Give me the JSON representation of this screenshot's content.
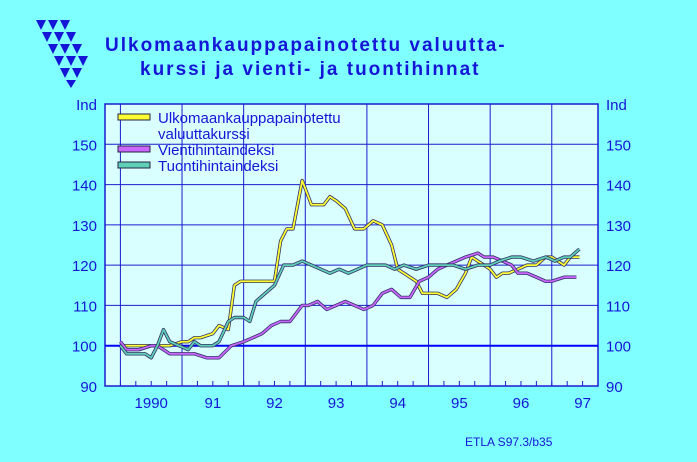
{
  "title_lines": [
    "Ulkomaankauppapainotettu  valuutta-",
    "kurssi  ja  vienti-  ja  tuontihinnat"
  ],
  "source": "ETLA S97.3/b35",
  "colors": {
    "background": "#7fffff",
    "plot": "#d9ffff",
    "text": "#1515d8",
    "grid": "#1b1bd0",
    "baseline": "#0000ff",
    "currency": "#ffff33",
    "export": "#cc66ff",
    "import": "#5fd0b8"
  },
  "logo": {
    "name": "etla-triangles-logo"
  },
  "chart_data": {
    "type": "line",
    "xlim": [
      1989.75,
      1997.75
    ],
    "ylim": [
      90,
      160
    ],
    "grid": true,
    "legend_position": "top-left",
    "y_axis_left_label": "Ind",
    "y_axis_right_label": "Ind",
    "y_ticks": [
      90,
      100,
      110,
      120,
      130,
      140,
      150
    ],
    "x_ticks": [
      {
        "label": "1990",
        "x": 1990.5
      },
      {
        "label": "91",
        "x": 1991.5
      },
      {
        "label": "92",
        "x": 1992.5
      },
      {
        "label": "93",
        "x": 1993.5
      },
      {
        "label": "94",
        "x": 1994.5
      },
      {
        "label": "95",
        "x": 1995.5
      },
      {
        "label": "96",
        "x": 1996.5
      },
      {
        "label": "97",
        "x": 1997.5
      }
    ],
    "reference_line": 100,
    "series": [
      {
        "name": "Ulkomaankauppapainotettu\nvaluuttakurssi",
        "color_key": "currency",
        "x": [
          1990.0,
          1990.1,
          1990.3,
          1990.5,
          1990.6,
          1990.8,
          1991.0,
          1991.1,
          1991.2,
          1991.3,
          1991.5,
          1991.6,
          1991.75,
          1991.85,
          1991.95,
          1992.1,
          1992.3,
          1992.5,
          1992.6,
          1992.7,
          1992.8,
          1992.95,
          1993.1,
          1993.2,
          1993.3,
          1993.4,
          1993.5,
          1993.65,
          1993.8,
          1993.95,
          1994.1,
          1994.25,
          1994.4,
          1994.5,
          1994.6,
          1994.7,
          1994.8,
          1994.9,
          1995.0,
          1995.15,
          1995.3,
          1995.45,
          1995.6,
          1995.7,
          1995.8,
          1995.9,
          1996.0,
          1996.1,
          1996.2,
          1996.3,
          1996.45,
          1996.6,
          1996.75,
          1996.9,
          1997.0,
          1997.2,
          1997.3,
          1997.45
        ],
        "values": [
          100,
          100,
          100,
          100,
          100,
          100,
          101,
          101,
          102,
          102,
          103,
          105,
          104,
          115,
          116,
          116,
          116,
          116,
          126,
          129,
          129,
          141,
          135,
          135,
          135,
          137,
          136,
          134,
          129,
          129,
          131,
          130,
          125,
          119,
          118,
          117,
          116,
          113,
          113,
          113,
          112,
          114,
          118,
          122,
          121,
          120,
          119,
          117,
          118,
          118,
          119,
          120,
          120,
          122,
          122,
          120,
          122,
          122
        ]
      },
      {
        "name": "Vientihintaindeksi",
        "color_key": "export",
        "x": [
          1990.0,
          1990.1,
          1990.3,
          1990.5,
          1990.6,
          1990.8,
          1991.0,
          1991.1,
          1991.2,
          1991.4,
          1991.6,
          1991.8,
          1992.0,
          1992.15,
          1992.3,
          1992.45,
          1992.6,
          1992.75,
          1992.95,
          1993.05,
          1993.2,
          1993.35,
          1993.5,
          1993.65,
          1993.8,
          1993.95,
          1994.1,
          1994.25,
          1994.4,
          1994.55,
          1994.7,
          1994.85,
          1995.0,
          1995.15,
          1995.3,
          1995.45,
          1995.6,
          1995.8,
          1995.9,
          1996.05,
          1996.2,
          1996.35,
          1996.45,
          1996.6,
          1996.75,
          1996.9,
          1997.0,
          1997.2,
          1997.4
        ],
        "values": [
          101,
          99,
          99,
          100,
          100,
          98,
          98,
          98,
          98,
          97,
          97,
          100,
          101,
          102,
          103,
          105,
          106,
          106,
          110,
          110,
          111,
          109,
          110,
          111,
          110,
          109,
          110,
          113,
          114,
          112,
          112,
          116,
          117,
          119,
          120,
          121,
          122,
          123,
          122,
          122,
          121,
          120,
          118,
          118,
          117,
          116,
          116,
          117,
          117
        ]
      },
      {
        "name": "Tuontihintaindeksi",
        "color_key": "import",
        "x": [
          1990.0,
          1990.1,
          1990.2,
          1990.4,
          1990.5,
          1990.6,
          1990.7,
          1990.8,
          1990.95,
          1991.1,
          1991.2,
          1991.3,
          1991.5,
          1991.6,
          1991.75,
          1991.85,
          1992.0,
          1992.1,
          1992.2,
          1992.35,
          1992.5,
          1992.65,
          1992.8,
          1992.95,
          1993.1,
          1993.25,
          1993.4,
          1993.55,
          1993.7,
          1993.85,
          1994.0,
          1994.15,
          1994.3,
          1994.45,
          1994.6,
          1994.8,
          1995.0,
          1995.2,
          1995.4,
          1995.6,
          1995.8,
          1996.0,
          1996.15,
          1996.35,
          1996.5,
          1996.7,
          1996.9,
          1997.05,
          1997.2,
          1997.3,
          1997.45
        ],
        "values": [
          100,
          98,
          98,
          98,
          97,
          100,
          104,
          101,
          100,
          99,
          101,
          100,
          100,
          101,
          106,
          107,
          107,
          106,
          111,
          113,
          115,
          120,
          120,
          121,
          120,
          119,
          118,
          119,
          118,
          119,
          120,
          120,
          120,
          119,
          120,
          119,
          120,
          120,
          120,
          119,
          120,
          120,
          121,
          122,
          122,
          121,
          122,
          121,
          122,
          122,
          124
        ]
      }
    ]
  }
}
